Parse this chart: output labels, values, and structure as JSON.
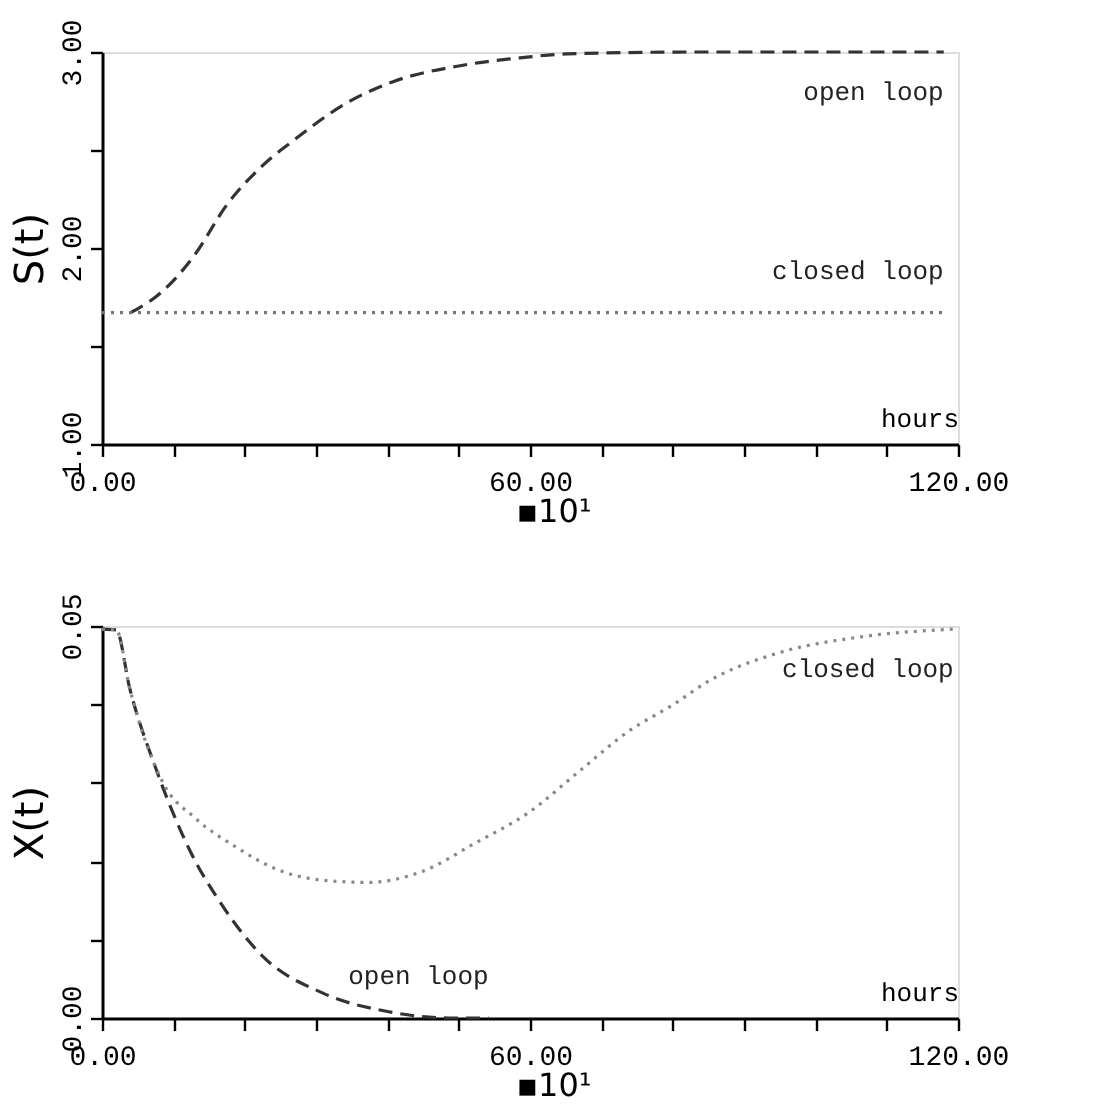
{
  "chart_data": [
    {
      "type": "line",
      "ylabel": "S(t)",
      "xlabel": "hours",
      "xlim": [
        0,
        120
      ],
      "ylim": [
        1,
        3
      ],
      "xticks": [
        {
          "value": 0,
          "label": "0.00"
        },
        {
          "value": 10,
          "label": null
        },
        {
          "value": 20,
          "label": null
        },
        {
          "value": 30,
          "label": null
        },
        {
          "value": 40,
          "label": null
        },
        {
          "value": 50,
          "label": null
        },
        {
          "value": 60,
          "label": "60.00"
        },
        {
          "value": 70,
          "label": null
        },
        {
          "value": 80,
          "label": null
        },
        {
          "value": 90,
          "label": null
        },
        {
          "value": 100,
          "label": null
        },
        {
          "value": 110,
          "label": null
        },
        {
          "value": 120,
          "label": "120.00"
        }
      ],
      "yticks": [
        {
          "value": 1,
          "label": "1.00"
        },
        {
          "value": 1.5,
          "label": null
        },
        {
          "value": 2,
          "label": "2.00"
        },
        {
          "value": 2.5,
          "label": null
        },
        {
          "value": 3,
          "label": "3.00"
        }
      ],
      "grid": false,
      "series": [
        {
          "name": "open loop",
          "color": "#333333",
          "line_style": "dashed",
          "x": [
            4,
            8.2,
            12.9,
            17.5,
            22.2,
            26.9,
            34.3,
            40.9,
            50.2,
            58.6,
            65.1,
            83.8,
            118
          ],
          "values": [
            1.67,
            1.77,
            1.96,
            2.22,
            2.41,
            2.55,
            2.74,
            2.85,
            2.93,
            2.97,
            2.99,
            3.0,
            3.0
          ]
        },
        {
          "name": "closed loop",
          "color": "#777777",
          "line_style": "dotted",
          "x": [
            0,
            118
          ],
          "values": [
            1.67,
            1.67
          ]
        }
      ],
      "annotations": [
        "▪10¹"
      ]
    },
    {
      "type": "line",
      "ylabel": "X(t)",
      "xlabel": "hours",
      "xlim": [
        0,
        120
      ],
      "ylim": [
        0,
        0.05
      ],
      "xticks": [
        {
          "value": 0,
          "label": "0.00"
        },
        {
          "value": 10,
          "label": null
        },
        {
          "value": 20,
          "label": null
        },
        {
          "value": 30,
          "label": null
        },
        {
          "value": 40,
          "label": null
        },
        {
          "value": 50,
          "label": null
        },
        {
          "value": 60,
          "label": "60.00"
        },
        {
          "value": 70,
          "label": null
        },
        {
          "value": 80,
          "label": null
        },
        {
          "value": 90,
          "label": null
        },
        {
          "value": 100,
          "label": null
        },
        {
          "value": 110,
          "label": null
        },
        {
          "value": 120,
          "label": "120.00"
        }
      ],
      "yticks": [
        {
          "value": 0,
          "label": "0.00"
        },
        {
          "value": 0.01,
          "label": null
        },
        {
          "value": 0.02,
          "label": null
        },
        {
          "value": 0.03,
          "label": null
        },
        {
          "value": 0.04,
          "label": null
        },
        {
          "value": 0.05,
          "label": "0.05"
        }
      ],
      "grid": false,
      "series": [
        {
          "name": "open loop",
          "color": "#333333",
          "line_style": "dashed",
          "x": [
            0,
            2,
            3.9,
            7.6,
            12.3,
            16.9,
            22.5,
            30.9,
            40.2,
            48.6,
            54.2
          ],
          "values": [
            0.0496,
            0.0495,
            0.042,
            0.0317,
            0.0214,
            0.0143,
            0.0079,
            0.0032,
            0.0008,
            0,
            0
          ]
        },
        {
          "name": "closed loop",
          "color": "#888888",
          "line_style": "dotted",
          "x": [
            0,
            2,
            3.9,
            8.5,
            13.2,
            18.8,
            24.4,
            31.8,
            37.4,
            44.9,
            52.3,
            59.8,
            67.2,
            73.7,
            80.3,
            84.9,
            94.2,
            106.3,
            119.4
          ],
          "values": [
            0.0496,
            0.0495,
            0.042,
            0.0301,
            0.0254,
            0.0218,
            0.019,
            0.0175,
            0.0173,
            0.0187,
            0.0223,
            0.0262,
            0.0317,
            0.0365,
            0.0401,
            0.0429,
            0.0464,
            0.0486,
            0.0496
          ]
        }
      ],
      "annotations": [
        "▪10¹"
      ]
    }
  ]
}
